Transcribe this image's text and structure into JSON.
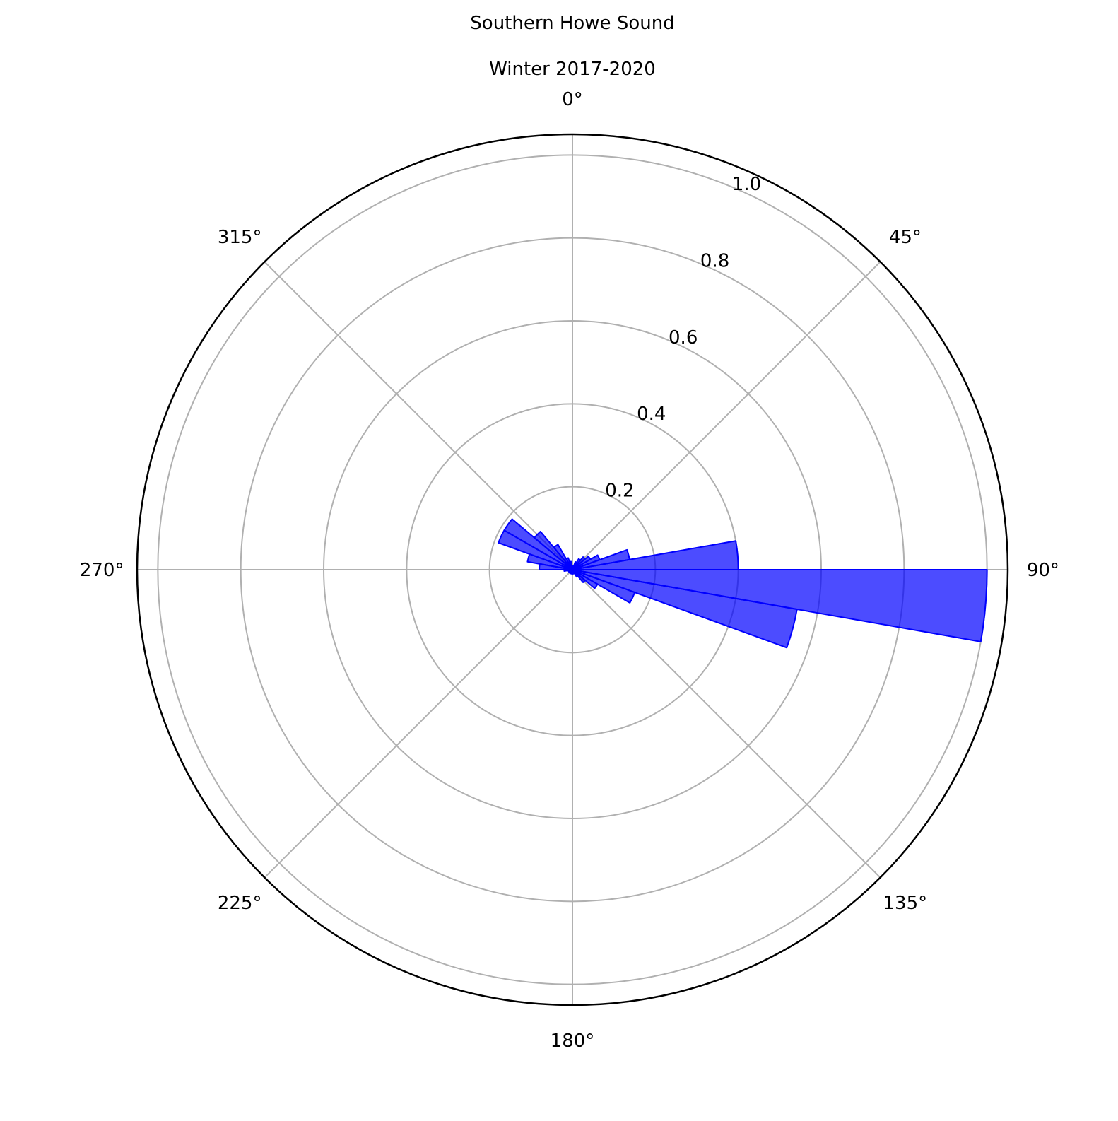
{
  "chart_data": {
    "type": "bar",
    "projection": "polar",
    "title": "Southern Howe Sound",
    "subtitle": "Winter 2017-2020",
    "theta_zero": "N",
    "theta_direction": "clockwise",
    "theta_tick_labels": [
      "0°",
      "45°",
      "90°",
      "135°",
      "180°",
      "225°",
      "270°",
      "315°"
    ],
    "theta_ticks": [
      0,
      45,
      90,
      135,
      180,
      225,
      270,
      315
    ],
    "r_ticks": [
      0.2,
      0.4,
      0.6,
      0.8,
      1.0
    ],
    "r_tick_labels": [
      "0.2",
      "0.4",
      "0.6",
      "0.8",
      "1.0"
    ],
    "rlim": [
      0,
      1.05
    ],
    "grid": true,
    "bar_color": "#0000ff",
    "bar_fill_opacity": 0.7,
    "bin_width_deg": 10,
    "bins_deg": [
      5,
      15,
      25,
      35,
      45,
      55,
      65,
      75,
      85,
      95,
      105,
      115,
      125,
      135,
      145,
      155,
      165,
      175,
      185,
      195,
      205,
      215,
      225,
      235,
      245,
      255,
      265,
      275,
      285,
      295,
      305,
      315,
      325,
      335,
      345,
      355
    ],
    "values": [
      0.01,
      0.01,
      0.02,
      0.03,
      0.04,
      0.05,
      0.07,
      0.14,
      0.4,
      1.0,
      0.55,
      0.16,
      0.07,
      0.04,
      0.02,
      0.01,
      0.01,
      0.01,
      0.01,
      0.01,
      0.01,
      0.01,
      0.01,
      0.01,
      0.01,
      0.01,
      0.02,
      0.08,
      0.11,
      0.19,
      0.19,
      0.12,
      0.07,
      0.03,
      0.02,
      0.01
    ]
  }
}
